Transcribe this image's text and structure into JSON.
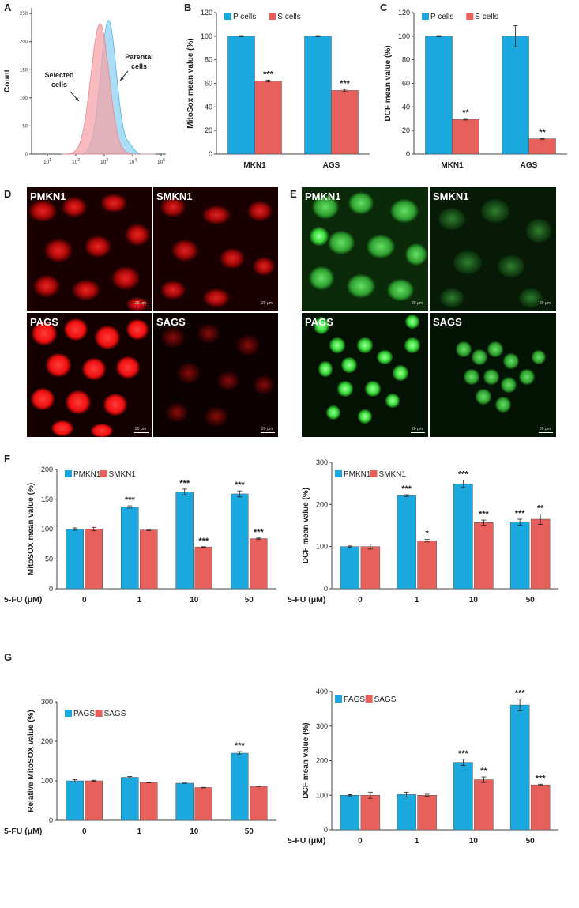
{
  "panel_letters": {
    "A": "A",
    "B": "B",
    "C": "C",
    "D": "D",
    "E": "E",
    "F": "F",
    "G": "G"
  },
  "colors": {
    "blue": "#1aa8df",
    "red": "#e8605c",
    "pink": "#f4a3a8",
    "light_blue": "#8fd3f2",
    "mito_red": "#ff1a1a",
    "dcf_green": "#33dd33"
  },
  "micro": {
    "D": {
      "tl": "PMKN1",
      "tr": "SMKN1",
      "bl": "PAGS",
      "br": "SAGS"
    },
    "E": {
      "tl": "PMKN1",
      "tr": "SMKN1",
      "bl": "PAGS",
      "br": "SAGS"
    },
    "scale": "20 μm"
  },
  "chart_data": [
    {
      "id": "A",
      "type": "area",
      "ylabel": "Count",
      "yticks": [
        "0",
        "50",
        "100",
        "150",
        "200",
        "250"
      ],
      "xticks": [
        "10^1",
        "10^2",
        "10^3",
        "10^4",
        "10^5"
      ],
      "annotations": {
        "selected": [
          "Selected",
          "cells"
        ],
        "parental": [
          "Parental",
          "cells"
        ]
      }
    },
    {
      "id": "B",
      "type": "bar",
      "categories": [
        "MKN1",
        "AGS"
      ],
      "series": [
        {
          "name": "P cells",
          "values": [
            100,
            100
          ],
          "err": [
            0.5,
            0.5
          ]
        },
        {
          "name": "S cells",
          "values": [
            62,
            54
          ],
          "err": [
            0.8,
            1
          ]
        }
      ],
      "sig": [
        [
          "",
          ""
        ],
        [
          "***",
          "***"
        ]
      ],
      "ylabel": "MitoSox  mean value (%)",
      "ylim": [
        0,
        120
      ],
      "yticks": [
        0,
        20,
        40,
        60,
        80,
        100,
        120
      ],
      "legend": "top-left",
      "xprefix": ""
    },
    {
      "id": "C",
      "type": "bar",
      "categories": [
        "MKN1",
        "AGS"
      ],
      "series": [
        {
          "name": "P cells",
          "values": [
            100,
            100
          ],
          "err": [
            0.5,
            9
          ]
        },
        {
          "name": "S cells",
          "values": [
            29.5,
            13
          ],
          "err": [
            0.6,
            0.4
          ]
        }
      ],
      "sig": [
        [
          "",
          ""
        ],
        [
          "**",
          "**"
        ]
      ],
      "ylabel": "DCF mean value (%)",
      "ylim": [
        0,
        120
      ],
      "yticks": [
        0,
        20,
        40,
        60,
        80,
        100,
        120
      ],
      "legend": "top-left",
      "xprefix": ""
    },
    {
      "id": "F1",
      "type": "bar",
      "categories": [
        "0",
        "1",
        "10",
        "50"
      ],
      "series": [
        {
          "name": "PMKN1",
          "values": [
            100,
            137,
            162,
            159
          ],
          "err": [
            2,
            2,
            5,
            5
          ]
        },
        {
          "name": "SMKN1",
          "values": [
            100,
            98.5,
            70,
            84
          ],
          "err": [
            3,
            1,
            0.5,
            1
          ]
        }
      ],
      "sig": [
        [
          "",
          "***",
          "***",
          "***"
        ],
        [
          "",
          "",
          "***",
          "***"
        ]
      ],
      "ylabel": "MitoSOX  mean value (%)",
      "ylim": [
        0,
        200
      ],
      "yticks": [
        0,
        50,
        100,
        150,
        200
      ],
      "legend": "top-left",
      "xprefix": "5-FU (μM)"
    },
    {
      "id": "F2",
      "type": "bar",
      "categories": [
        "0",
        "1",
        "10",
        "50"
      ],
      "series": [
        {
          "name": "PMKN1",
          "values": [
            100,
            221,
            249,
            158
          ],
          "err": [
            1.5,
            2,
            9,
            7
          ]
        },
        {
          "name": "SMKN1",
          "values": [
            100,
            114,
            157,
            165
          ],
          "err": [
            6,
            3,
            6,
            12
          ]
        }
      ],
      "sig": [
        [
          "",
          "***",
          "***",
          "***"
        ],
        [
          "",
          "*",
          "***",
          "**"
        ]
      ],
      "ylabel": "DCF mean value (%)",
      "ylim": [
        0,
        300
      ],
      "yticks": [
        0,
        100,
        200,
        300
      ],
      "legend": "top-left",
      "xprefix": "5-FU (μM)"
    },
    {
      "id": "G1",
      "type": "bar",
      "categories": [
        "0",
        "1",
        "10",
        "50"
      ],
      "series": [
        {
          "name": "PAGS",
          "values": [
            100,
            109,
            94,
            170
          ],
          "err": [
            3,
            2,
            0.5,
            4
          ]
        },
        {
          "name": "SAGS",
          "values": [
            100,
            96,
            83,
            86
          ],
          "err": [
            1.5,
            1,
            0.5,
            0.5
          ]
        }
      ],
      "sig": [
        [
          "",
          "",
          "",
          "***"
        ],
        [
          "",
          "",
          "",
          ""
        ]
      ],
      "ylabel": "Relative MitoSOX value (%)",
      "ylim": [
        0,
        300
      ],
      "yticks": [
        0,
        100,
        200,
        300
      ],
      "legend": "top-left",
      "xprefix": "5-FU (μM)"
    },
    {
      "id": "G2",
      "type": "bar",
      "categories": [
        "0",
        "1",
        "10",
        "50"
      ],
      "series": [
        {
          "name": "PAGS",
          "values": [
            100,
            102,
            195,
            361
          ],
          "err": [
            2,
            7,
            9,
            17
          ]
        },
        {
          "name": "SAGS",
          "values": [
            100,
            100,
            145,
            130
          ],
          "err": [
            9,
            3,
            8,
            2
          ]
        }
      ],
      "sig": [
        [
          "",
          "",
          "***",
          "***"
        ],
        [
          "",
          "",
          "**",
          "***"
        ]
      ],
      "ylabel": "DCF mean value (%)",
      "ylim": [
        0,
        400
      ],
      "yticks": [
        0,
        100,
        200,
        300,
        400
      ],
      "legend": "top-left",
      "xprefix": "5-FU (μM)"
    }
  ]
}
